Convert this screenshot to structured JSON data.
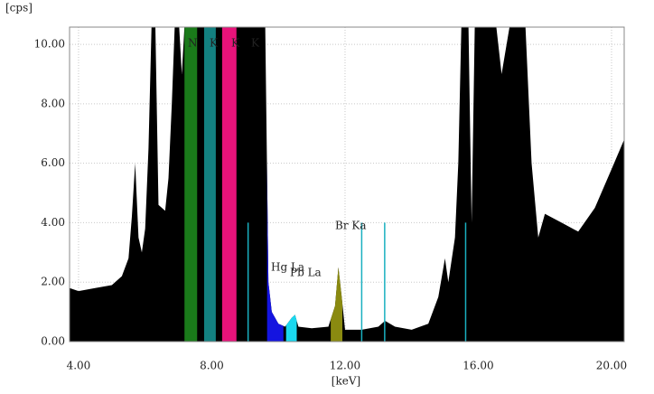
{
  "chart_data": {
    "type": "area",
    "xlabel": "[keV]",
    "ylabel": "[cps]",
    "x": [
      3.73,
      4.0,
      4.5,
      5.0,
      5.3,
      5.5,
      5.6,
      5.7,
      5.8,
      5.9,
      6.0,
      6.1,
      6.2,
      6.3,
      6.4,
      6.6,
      6.7,
      6.8,
      6.9,
      7.0,
      7.1,
      7.2,
      8.8,
      8.9,
      9.6,
      9.7,
      9.8,
      10.0,
      10.2,
      10.4,
      10.5,
      10.6,
      11.0,
      11.5,
      11.7,
      11.8,
      11.9,
      12.0,
      12.5,
      13.0,
      13.2,
      13.5,
      14.0,
      14.5,
      14.8,
      15.0,
      15.1,
      15.3,
      15.4,
      15.5,
      15.7,
      15.8,
      15.9,
      16.5,
      16.7,
      17.0,
      17.4,
      17.6,
      17.8,
      18.0,
      18.5,
      19.0,
      19.5,
      20.0,
      20.38
    ],
    "series": [
      {
        "color": "#000000",
        "values": [
          1.8,
          1.7,
          1.8,
          1.9,
          2.2,
          2.8,
          4.2,
          6.0,
          3.5,
          3.0,
          3.8,
          6.5,
          11,
          11,
          4.6,
          4.4,
          5.5,
          8,
          11,
          11,
          9,
          11,
          11,
          11,
          11,
          2.0,
          1.0,
          0.6,
          0.5,
          0.8,
          0.9,
          0.5,
          0.45,
          0.5,
          1.2,
          2.5,
          1.5,
          0.4,
          0.4,
          0.5,
          0.7,
          0.5,
          0.4,
          0.6,
          1.5,
          2.8,
          2.0,
          3.5,
          6,
          11,
          11,
          4,
          11,
          11,
          9,
          11,
          11,
          6,
          3.5,
          4.3,
          4.0,
          3.7,
          4.5,
          5.8,
          6.8
        ]
      }
    ],
    "highlights": [
      {
        "color": "#1a7a1a",
        "xrange": [
          7.18,
          7.56
        ]
      },
      {
        "color": "#138080",
        "xrange": [
          7.77,
          8.12
        ]
      },
      {
        "color": "#e8137a",
        "xrange": [
          8.31,
          8.74
        ]
      },
      {
        "color": "#1414e0",
        "xrange": [
          9.66,
          10.15
        ]
      },
      {
        "color": "#1ad8ef",
        "xrange": [
          10.23,
          10.55
        ]
      },
      {
        "color": "#8a8a10",
        "xrange": [
          11.57,
          11.92
        ]
      }
    ],
    "markers": {
      "color": "#1ab0c0",
      "x": [
        9.09,
        12.5,
        13.19,
        15.62
      ]
    },
    "annotations": [
      "N",
      "K",
      "K",
      "K",
      "Hg La",
      "Pb La",
      "Br Ka"
    ],
    "xlim": [
      3.73,
      20.38
    ],
    "ylim": [
      0,
      10.58
    ],
    "xticks": [
      {
        "value": 4,
        "label": "4.00"
      },
      {
        "value": 8,
        "label": "8.00"
      },
      {
        "value": 12,
        "label": "12.00"
      },
      {
        "value": 16,
        "label": "16.00"
      },
      {
        "value": 20,
        "label": "20.00"
      }
    ],
    "yticks": [
      {
        "value": 0,
        "label": "0.00"
      },
      {
        "value": 2,
        "label": "2.00"
      },
      {
        "value": 4,
        "label": "4.00"
      },
      {
        "value": 6,
        "label": "6.00"
      },
      {
        "value": 8,
        "label": "8.00"
      },
      {
        "value": 10,
        "label": "10.00"
      }
    ],
    "grid": true
  }
}
